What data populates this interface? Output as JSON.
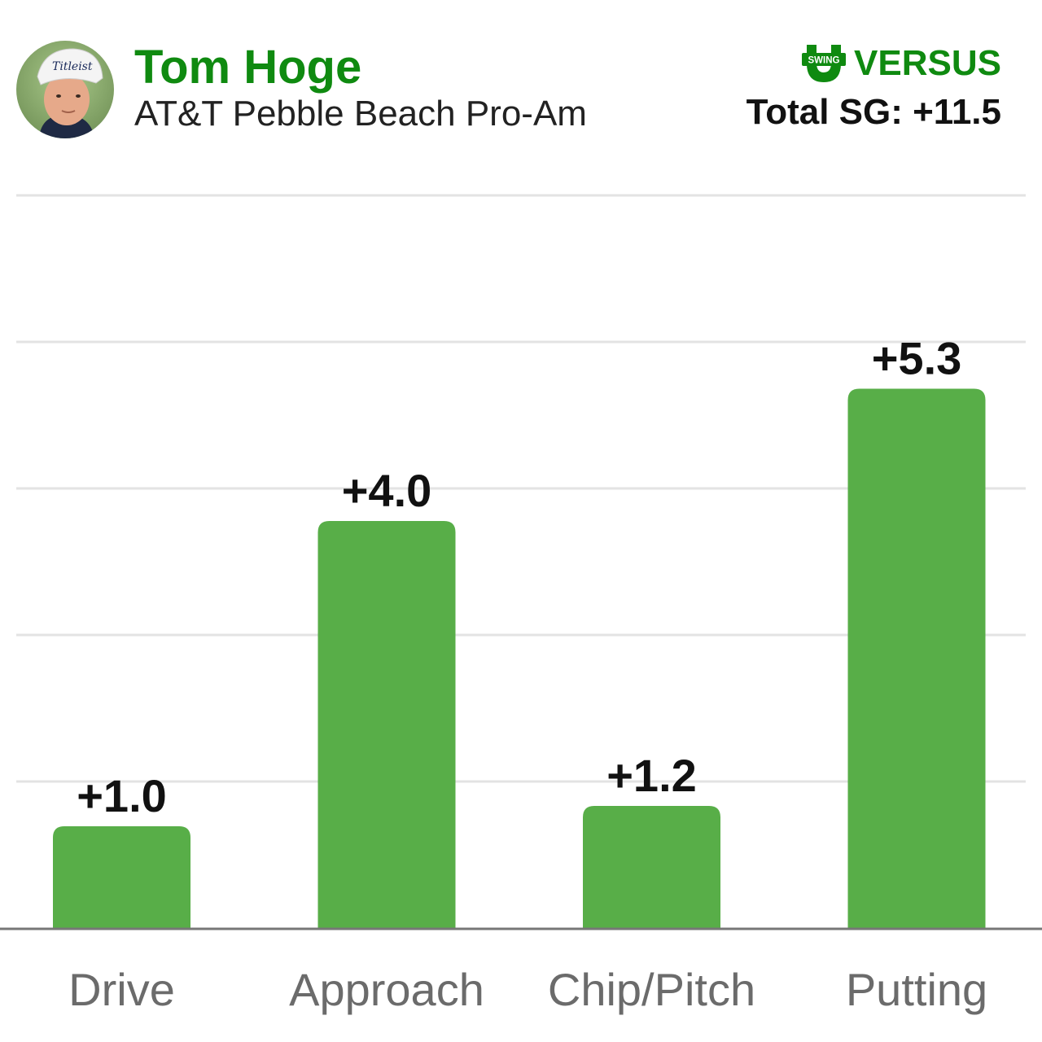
{
  "header": {
    "player_name": "Tom Hoge",
    "event_name": "AT&T Pebble Beach Pro-Am",
    "brand_badge_text": "SWING",
    "brand_name": "VERSUS",
    "total_label": "Total SG: +11.5"
  },
  "colors": {
    "accent": "#0f8a10",
    "bar": "#58ae48",
    "grid": "#e3e3e3",
    "axis": "#777777",
    "category_text": "#6b6b6b",
    "value_text": "#111111"
  },
  "icons": {
    "avatar": "player-photo",
    "brand_logo": "swing-u-icon"
  },
  "chart_data": {
    "type": "bar",
    "categories": [
      "Drive",
      "Approach",
      "Chip/Pitch",
      "Putting"
    ],
    "values": [
      1.0,
      4.0,
      1.2,
      5.3
    ],
    "value_labels": [
      "+1.0",
      "+4.0",
      "+1.2",
      "+5.3"
    ],
    "ylim": [
      0,
      7.2
    ],
    "grid": true,
    "gridlines": [
      1.44,
      2.88,
      4.32,
      5.76,
      7.2
    ]
  }
}
